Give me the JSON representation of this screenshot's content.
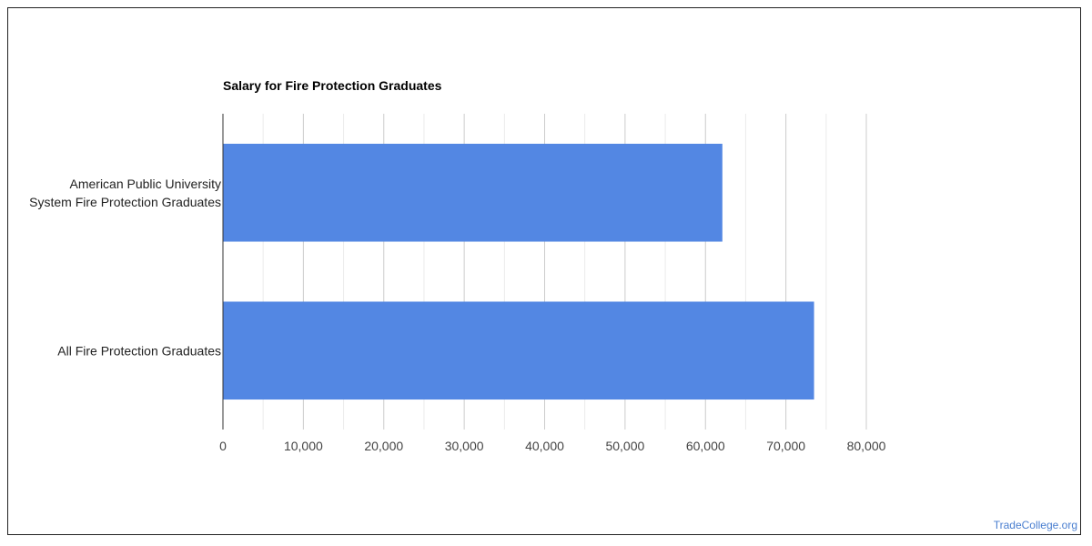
{
  "watermark": "TradeCollege.org",
  "colors": {
    "bar": "#5387e3",
    "axis": "#333333",
    "grid_major": "#cccccc",
    "grid_minor": "#ebebeb"
  },
  "chart_data": {
    "type": "bar",
    "orientation": "horizontal",
    "title": "Salary for Fire Protection Graduates",
    "xlabel": "",
    "ylabel": "",
    "categories": [
      [
        "American Public University",
        "System Fire Protection Graduates"
      ],
      [
        "All Fire Protection Graduates"
      ]
    ],
    "values": [
      62100,
      73500
    ],
    "xlim": [
      0,
      80000
    ],
    "xticks": [
      0,
      10000,
      20000,
      30000,
      40000,
      50000,
      60000,
      70000,
      80000
    ],
    "xtick_labels": [
      "0",
      "10,000",
      "20,000",
      "30,000",
      "40,000",
      "50,000",
      "60,000",
      "70,000",
      "80,000"
    ],
    "grid": true,
    "legend": "none"
  }
}
